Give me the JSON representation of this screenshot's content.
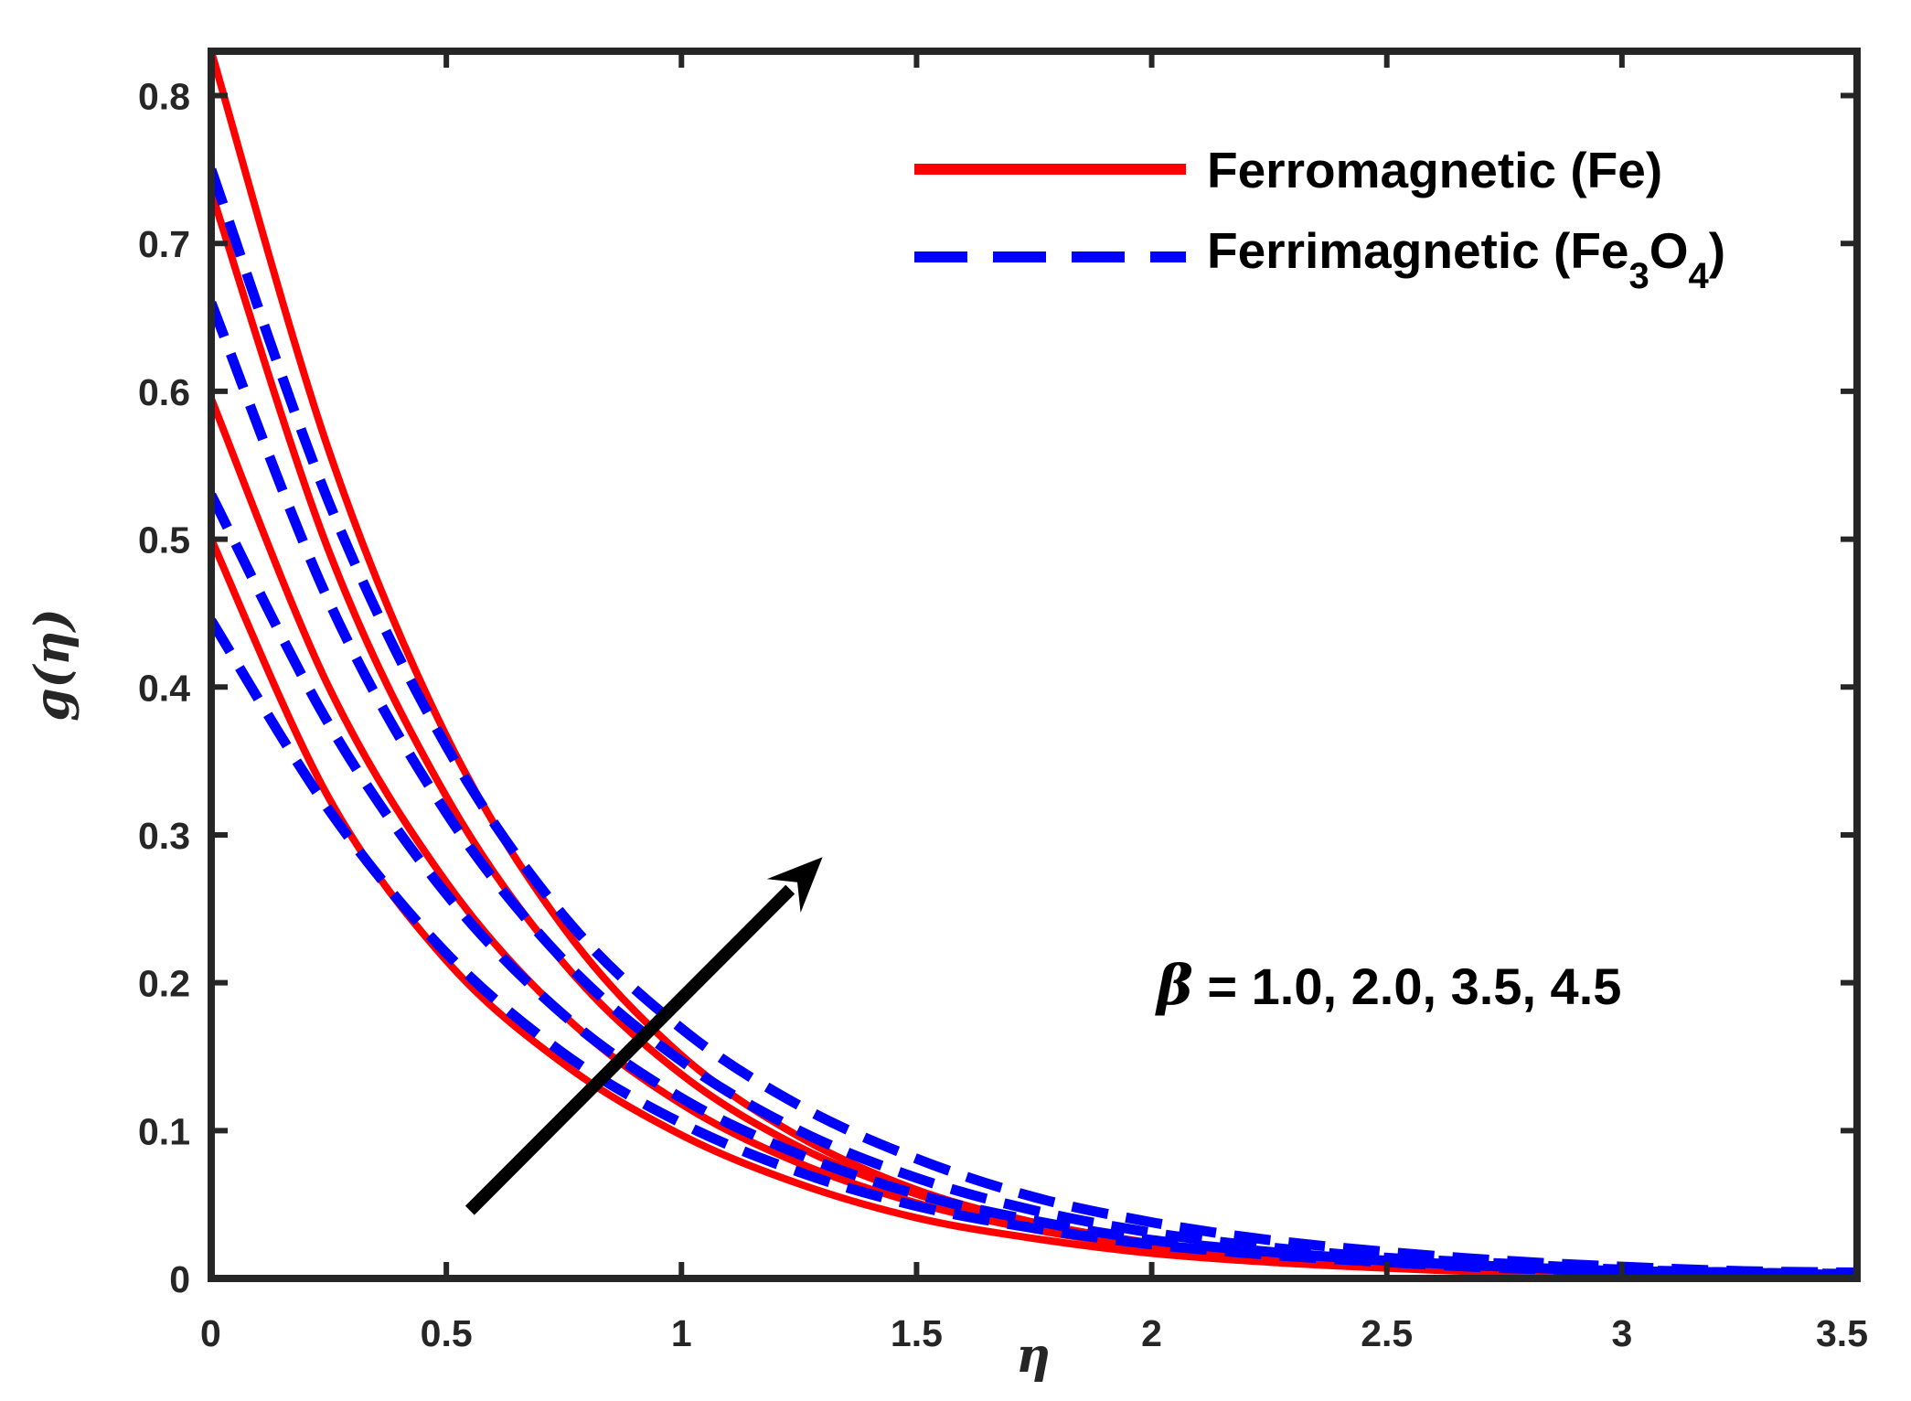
{
  "chart_data": {
    "type": "line",
    "xlabel": "η",
    "ylabel": "g(η)",
    "xlim": [
      0,
      3.5
    ],
    "ylim": [
      0,
      0.83
    ],
    "xticks": [
      0,
      0.5,
      1,
      1.5,
      2,
      2.5,
      3,
      3.5
    ],
    "xtick_labels": [
      "0",
      "0.5",
      "1",
      "1.5",
      "2",
      "2.5",
      "3",
      "3.5"
    ],
    "yticks": [
      0,
      0.1,
      0.2,
      0.3,
      0.4,
      0.5,
      0.6,
      0.7,
      0.8
    ],
    "ytick_labels": [
      "0",
      "0.1",
      "0.2",
      "0.3",
      "0.4",
      "0.5",
      "0.6",
      "0.7",
      "0.8"
    ],
    "grid": false,
    "legend_position": "top-right",
    "legend": [
      {
        "label": "Ferromagnetic (Fe)",
        "color": "#ff0000",
        "style": "solid"
      },
      {
        "label_main": "Ferrimagnetic (Fe",
        "label_sub1": "3",
        "label_mid": "O",
        "label_sub2": "4",
        "label_end": ")",
        "color": "#0000ff",
        "style": "dashed"
      }
    ],
    "annotation": {
      "symbol": "β",
      "text": " = 1.0, 2.0, 3.5, 4.5"
    },
    "arrow": {
      "from": [
        0.55,
        0.046
      ],
      "to": [
        1.3,
        0.285
      ],
      "color": "#000000"
    },
    "x": [
      0,
      0.25,
      0.5,
      0.75,
      1,
      1.25,
      1.5,
      1.75,
      2,
      2.25,
      2.5,
      2.75,
      3,
      3.25,
      3.5
    ],
    "series": [
      {
        "group": "Ferromagnetic (Fe)",
        "color": "#ff0000",
        "dash": false,
        "values": [
          0.5,
          0.325,
          0.215,
          0.145,
          0.097,
          0.064,
          0.041,
          0.027,
          0.017,
          0.011,
          0.007,
          0.004,
          0.003,
          0.002,
          0.001
        ]
      },
      {
        "group": "Ferromagnetic (Fe)",
        "color": "#ff0000",
        "dash": false,
        "values": [
          0.595,
          0.4,
          0.268,
          0.178,
          0.118,
          0.078,
          0.051,
          0.033,
          0.021,
          0.013,
          0.008,
          0.005,
          0.003,
          0.002,
          0.001
        ]
      },
      {
        "group": "Ferromagnetic (Fe)",
        "color": "#ff0000",
        "dash": false,
        "values": [
          0.735,
          0.492,
          0.326,
          0.213,
          0.138,
          0.089,
          0.057,
          0.036,
          0.023,
          0.014,
          0.009,
          0.005,
          0.003,
          0.002,
          0.001
        ]
      },
      {
        "group": "Ferromagnetic (Fe)",
        "color": "#ff0000",
        "dash": false,
        "values": [
          0.83,
          0.56,
          0.367,
          0.237,
          0.151,
          0.096,
          0.06,
          0.038,
          0.024,
          0.015,
          0.009,
          0.006,
          0.003,
          0.002,
          0.001
        ]
      },
      {
        "group": "Ferrimagnetic (Fe3O4)",
        "color": "#0000ff",
        "dash": true,
        "values": [
          0.445,
          0.317,
          0.22,
          0.152,
          0.105,
          0.072,
          0.049,
          0.034,
          0.023,
          0.016,
          0.011,
          0.007,
          0.005,
          0.003,
          0.002
        ]
      },
      {
        "group": "Ferrimagnetic (Fe3O4)",
        "color": "#0000ff",
        "dash": true,
        "values": [
          0.53,
          0.375,
          0.26,
          0.178,
          0.122,
          0.084,
          0.057,
          0.039,
          0.026,
          0.018,
          0.012,
          0.008,
          0.005,
          0.004,
          0.002
        ]
      },
      {
        "group": "Ferrimagnetic (Fe3O4)",
        "color": "#0000ff",
        "dash": true,
        "values": [
          0.66,
          0.458,
          0.315,
          0.215,
          0.147,
          0.1,
          0.068,
          0.046,
          0.031,
          0.021,
          0.014,
          0.01,
          0.006,
          0.004,
          0.003
        ]
      },
      {
        "group": "Ferrimagnetic (Fe3O4)",
        "color": "#0000ff",
        "dash": true,
        "values": [
          0.75,
          0.525,
          0.36,
          0.245,
          0.169,
          0.117,
          0.081,
          0.055,
          0.038,
          0.026,
          0.018,
          0.012,
          0.008,
          0.005,
          0.004
        ]
      }
    ]
  }
}
